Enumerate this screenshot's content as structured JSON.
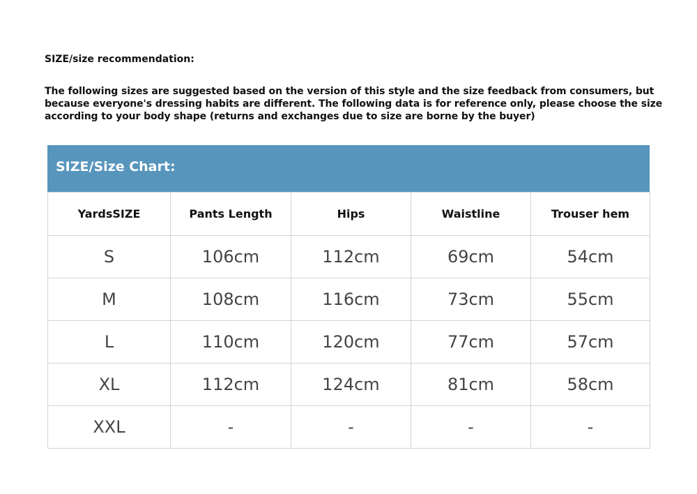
{
  "recommendation_title": "SIZE/size recommendation:",
  "description": "The following sizes are suggested based on the version of this style and the size feedback from consumers, but because everyone's dressing habits are different. The following data is for reference only, please choose the size according to your body shape (returns and exchanges due to size are borne by the buyer)",
  "chart": {
    "title": "SIZE/Size Chart:",
    "header_color": "#5795bd",
    "columns": [
      "YardsSIZE",
      "Pants Length",
      "Hips",
      "Waistline",
      "Trouser hem"
    ],
    "rows": [
      [
        "S",
        "106cm",
        "112cm",
        "69cm",
        "54cm"
      ],
      [
        "M",
        "108cm",
        "116cm",
        "73cm",
        "55cm"
      ],
      [
        "L",
        "110cm",
        "120cm",
        "77cm",
        "57cm"
      ],
      [
        "XL",
        "112cm",
        "124cm",
        "81cm",
        "58cm"
      ],
      [
        "XXL",
        "-",
        "-",
        "-",
        "-"
      ]
    ]
  }
}
